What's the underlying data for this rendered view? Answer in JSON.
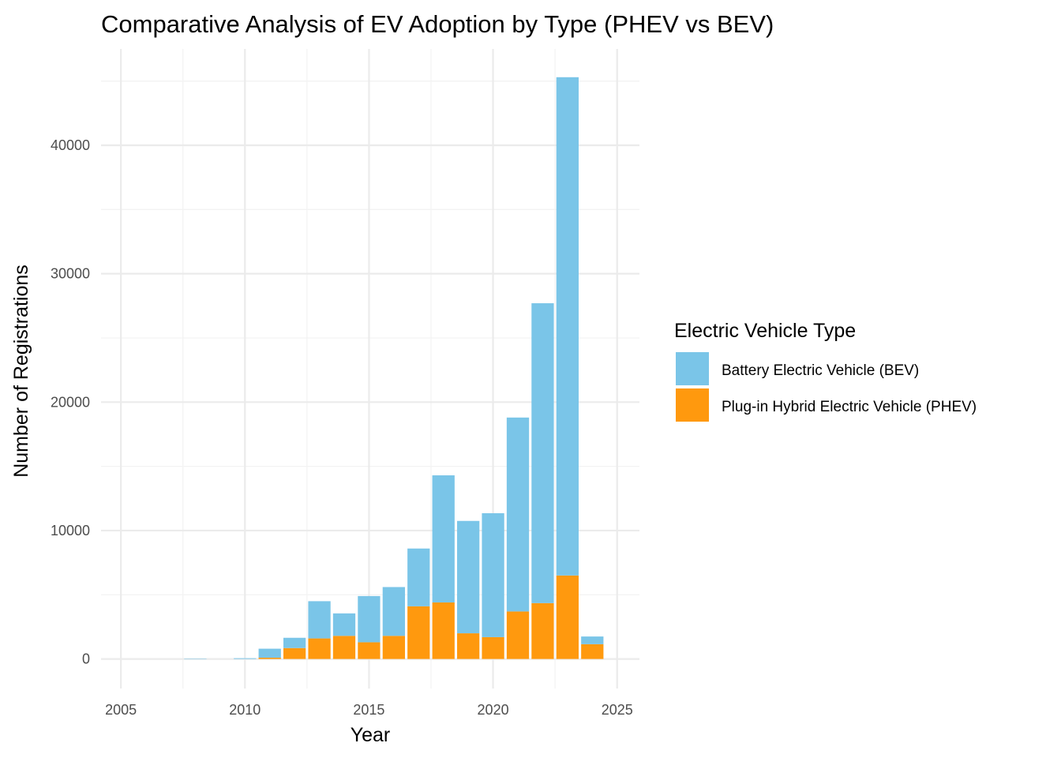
{
  "colors": {
    "bev": "#7AC5E8",
    "phev": "#FF990E",
    "grid_major": "#EBEBEB",
    "grid_minor": "#F3F3F3",
    "tick_text": "#4D4D4D"
  },
  "chart_data": {
    "type": "bar",
    "stacked": true,
    "title": "Comparative Analysis of EV Adoption by Type (PHEV vs BEV)",
    "xlabel": "Year",
    "ylabel": "Number of Registrations",
    "xlim": [
      2004.2,
      2025.9
    ],
    "ylim": [
      -2300,
      47500
    ],
    "x_ticks": [
      2005,
      2010,
      2015,
      2020,
      2025
    ],
    "y_ticks": [
      0,
      10000,
      20000,
      30000,
      40000
    ],
    "grid": true,
    "legend": {
      "title": "Electric Vehicle Type",
      "position": "right"
    },
    "x": [
      2008,
      2010,
      2011,
      2012,
      2013,
      2014,
      2015,
      2016,
      2017,
      2018,
      2019,
      2020,
      2021,
      2022,
      2023,
      2024
    ],
    "series": [
      {
        "name": "Plug-in Hybrid Electric Vehicle (PHEV)",
        "key": "phev",
        "values": [
          0,
          0,
          100,
          850,
          1600,
          1800,
          1300,
          1800,
          4100,
          4400,
          2000,
          1700,
          3700,
          4350,
          6500,
          1150
        ]
      },
      {
        "name": "Battery Electric Vehicle (BEV)",
        "key": "bev",
        "values": [
          30,
          60,
          700,
          800,
          2900,
          1750,
          3600,
          3800,
          4500,
          9900,
          8750,
          9650,
          15100,
          23350,
          38800,
          600
        ]
      }
    ]
  }
}
